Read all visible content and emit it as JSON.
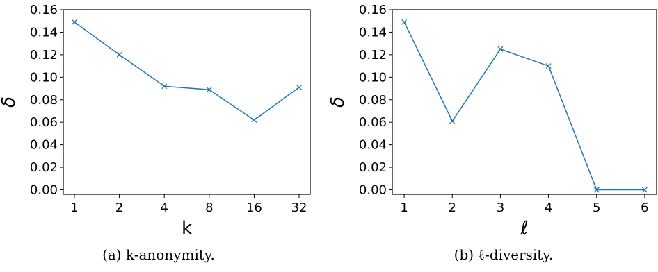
{
  "chart_data": [
    {
      "type": "line",
      "categories": [
        "1",
        "2",
        "4",
        "8",
        "16",
        "32"
      ],
      "values": [
        0.149,
        0.12,
        0.092,
        0.089,
        0.062,
        0.091
      ],
      "xlabel": "k",
      "ylabel": "δ",
      "ylim": [
        -0.004,
        0.16
      ],
      "yticks": [
        "0.00",
        "0.02",
        "0.04",
        "0.06",
        "0.08",
        "0.10",
        "0.12",
        "0.14",
        "0.16"
      ],
      "marker": "x",
      "color": "#1f77b4",
      "grid": false,
      "caption": "(a) k-anonymity."
    },
    {
      "type": "line",
      "categories": [
        "1",
        "2",
        "3",
        "4",
        "5",
        "6"
      ],
      "values": [
        0.149,
        0.061,
        0.125,
        0.11,
        0.0,
        0.0
      ],
      "xlabel": "ℓ",
      "ylabel": "δ",
      "ylim": [
        -0.004,
        0.16
      ],
      "yticks": [
        "0.00",
        "0.02",
        "0.04",
        "0.06",
        "0.08",
        "0.10",
        "0.12",
        "0.14",
        "0.16"
      ],
      "marker": "x",
      "color": "#1f77b4",
      "grid": false,
      "caption": "(b) ℓ-diversity."
    }
  ]
}
